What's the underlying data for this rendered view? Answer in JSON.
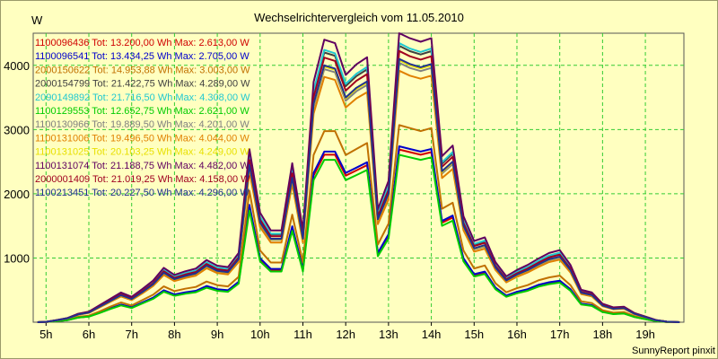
{
  "chart_data": {
    "type": "line",
    "title": "Wechselrichtervergleich vom 11.05.2010",
    "ylabel": "W",
    "xlabel": "",
    "footer": "SunnyReport pinxit",
    "x_hours": [
      4.8,
      5.0,
      5.25,
      5.5,
      5.75,
      6.0,
      6.25,
      6.5,
      6.75,
      7.0,
      7.25,
      7.5,
      7.75,
      8.0,
      8.25,
      8.5,
      8.75,
      9.0,
      9.25,
      9.5,
      9.75,
      10.0,
      10.25,
      10.5,
      10.75,
      11.0,
      11.25,
      11.5,
      11.75,
      12.0,
      12.25,
      12.5,
      12.75,
      13.0,
      13.25,
      13.5,
      13.75,
      14.0,
      14.25,
      14.5,
      14.75,
      15.0,
      15.25,
      15.5,
      15.75,
      16.0,
      16.25,
      16.5,
      16.75,
      17.0,
      17.25,
      17.5,
      17.75,
      18.0,
      18.25,
      18.5,
      18.75,
      19.0,
      19.25,
      19.5,
      19.8
    ],
    "x_ticks": [
      "5h",
      "6h",
      "7h",
      "8h",
      "9h",
      "10h",
      "11h",
      "12h",
      "13h",
      "14h",
      "15h",
      "16h",
      "17h",
      "18h",
      "19h"
    ],
    "x_range": [
      4.7,
      19.9
    ],
    "y_ticks": [
      1000,
      2000,
      3000,
      4000
    ],
    "ylim": [
      0,
      4500
    ],
    "grid": true,
    "legend_position": "top-left",
    "shape_small": [
      0,
      5,
      20,
      40,
      90,
      110,
      180,
      260,
      330,
      280,
      370,
      460,
      600,
      520,
      560,
      590,
      680,
      620,
      600,
      760,
      2200,
      1200,
      1000,
      1000,
      1800,
      1000,
      2800,
      3200,
      3200,
      2800,
      2900,
      3000,
      1300,
      1650,
      3300,
      3250,
      3200,
      3250,
      1900,
      2000,
      1200,
      900,
      950,
      650,
      500,
      570,
      620,
      700,
      750,
      780,
      620,
      350,
      320,
      200,
      160,
      170,
      100,
      60,
      20,
      5,
      0
    ],
    "shape_large": [
      0,
      5,
      30,
      60,
      120,
      150,
      240,
      330,
      420,
      360,
      470,
      590,
      770,
      670,
      720,
      760,
      880,
      800,
      780,
      980,
      2450,
      1550,
      1300,
      1300,
      2250,
      1300,
      3400,
      4000,
      3950,
      3500,
      3650,
      3750,
      1600,
      2000,
      4100,
      4020,
      3970,
      4020,
      2350,
      2500,
      1500,
      1150,
      1200,
      850,
      650,
      740,
      810,
      900,
      980,
      1020,
      810,
      460,
      420,
      260,
      210,
      220,
      130,
      80,
      30,
      8,
      0
    ],
    "series": [
      {
        "name": "1100096436",
        "legend": "1100096436 Tot: 13.200,00 Wh Max: 2.613,00 W",
        "color": "#d00000",
        "scale": 0.815,
        "shape": "small"
      },
      {
        "name": "1100096541",
        "legend": "1100096541 Tot: 13.434,25 Wh Max: 2.705,00 W",
        "color": "#0000cc",
        "scale": 0.83,
        "shape": "small"
      },
      {
        "name": "2000150622",
        "legend": "2000150622 Tot: 14.953,88 Wh Max: 3.003,00 W",
        "color": "#c07000",
        "scale": 0.93,
        "shape": "small"
      },
      {
        "name": "2000154799",
        "legend": "2000154799 Tot: 21.422,75 Wh Max: 4.289,00 W",
        "color": "#404040",
        "scale": 1.05,
        "shape": "large"
      },
      {
        "name": "2090149892",
        "legend": "2090149892 Tot: 21.716,50 Wh Max: 4.308,00 W",
        "color": "#20c8d0",
        "scale": 1.06,
        "shape": "large"
      },
      {
        "name": "1100129553",
        "legend": "1100129553 Tot: 12.652,75 Wh Max: 2.621,00 W",
        "color": "#00cc00",
        "scale": 0.79,
        "shape": "small"
      },
      {
        "name": "1100130966",
        "legend": "1100130966 Tot: 19.889,50 Wh Max: 4.201,00 W",
        "color": "#808080",
        "scale": 0.985,
        "shape": "large"
      },
      {
        "name": "1100131006",
        "legend": "1100131006 Tot: 19.496,50 Wh Max: 4.044,00 W",
        "color": "#e08000",
        "scale": 0.955,
        "shape": "large"
      },
      {
        "name": "1100131025",
        "legend": "1100131025 Tot: 20.103,25 Wh Max: 4.249,00 W",
        "color": "#e8e000",
        "scale": 0.995,
        "shape": "large"
      },
      {
        "name": "1100131074",
        "legend": "1100131074 Tot: 21.188,75 Wh Max: 4.482,00 W",
        "color": "#600060",
        "scale": 1.1,
        "shape": "large"
      },
      {
        "name": "2000001409",
        "legend": "2000001409 Tot: 21.019,25 Wh Max: 4.158,00 W",
        "color": "#a00020",
        "scale": 1.03,
        "shape": "large"
      },
      {
        "name": "1100213451",
        "legend": "1100213451 Tot: 20.227,50 Wh Max: 4.296,00 W",
        "color": "#203090",
        "scale": 1.0,
        "shape": "large"
      }
    ]
  }
}
